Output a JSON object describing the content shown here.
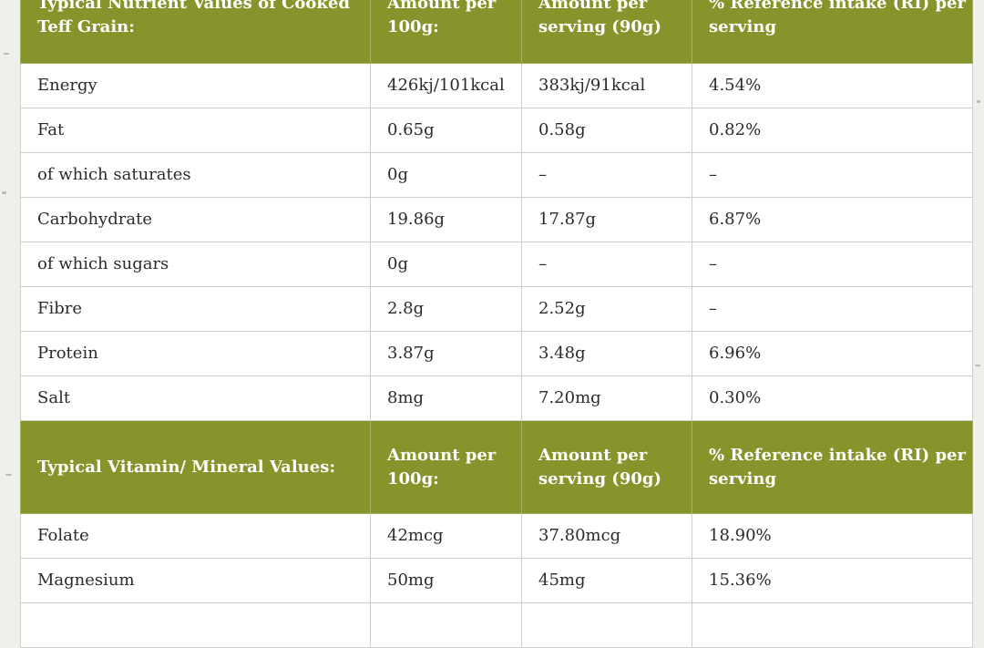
{
  "section1": {
    "headers": [
      "Typical Nutrient Values of Cooked Teff Grain:",
      "Amount per 100g:",
      "Amount per serving (90g)",
      "% Reference intake (RI) per serving"
    ],
    "rows": [
      [
        "Energy",
        "426kj/101kcal",
        "383kj/91kcal",
        "4.54%"
      ],
      [
        "Fat",
        "0.65g",
        "0.58g",
        "0.82%"
      ],
      [
        "of which saturates",
        "0g",
        "–",
        "–"
      ],
      [
        "Carbohydrate",
        "19.86g",
        "17.87g",
        "6.87%"
      ],
      [
        "of which sugars",
        "0g",
        "–",
        "–"
      ],
      [
        "Fibre",
        "2.8g",
        "2.52g",
        "–"
      ],
      [
        "Protein",
        "3.87g",
        "3.48g",
        "6.96%"
      ],
      [
        "Salt",
        "8mg",
        "7.20mg",
        "0.30%"
      ]
    ]
  },
  "section2": {
    "headers": [
      "Typical Vitamin/ Mineral Values:",
      "Amount per 100g:",
      "Amount per serving (90g)",
      "% Reference intake (RI) per serving"
    ],
    "rows": [
      [
        "Folate",
        "42mcg",
        "37.80mcg",
        "18.90%"
      ],
      [
        "Magnesium",
        "50mg",
        "45mg",
        "15.36%"
      ],
      [
        "",
        "",
        "",
        ""
      ]
    ]
  },
  "colors": {
    "header_bg": "#87942c",
    "header_text": "#ffffff",
    "body_text": "#2b2b2b",
    "border": "#cdd0c8",
    "page_bg": "#eef0ec"
  }
}
